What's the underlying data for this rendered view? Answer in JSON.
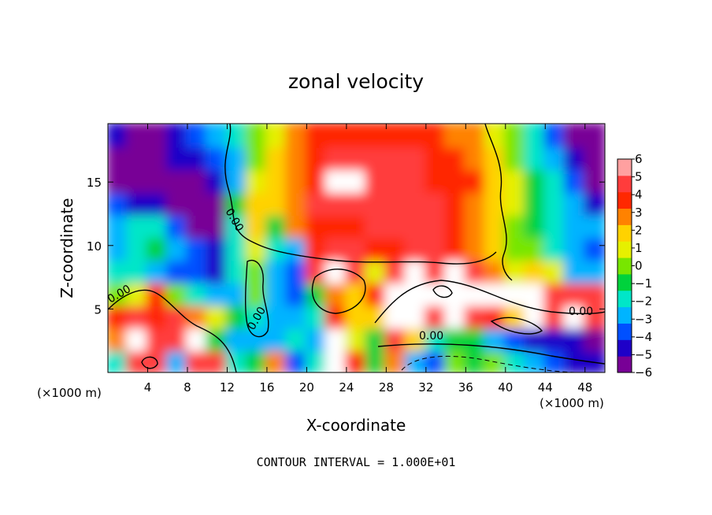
{
  "chart_data": {
    "type": "heatmap",
    "title": "zonal velocity",
    "xlabel": "X-coordinate",
    "ylabel": "Z-coordinate",
    "x_unit_label": "(×1000 m)",
    "x_ticks": [
      4,
      8,
      12,
      16,
      20,
      24,
      28,
      32,
      36,
      40,
      44,
      48
    ],
    "y_ticks": [
      5,
      10,
      15
    ],
    "xlim": [
      0,
      50
    ],
    "ylim": [
      0,
      19.6
    ],
    "colorbar_ticks": [
      6,
      5,
      4,
      3,
      2,
      1,
      0,
      -1,
      -2,
      -3,
      -4,
      -5,
      -6
    ],
    "colorbar_range": [
      -6,
      6
    ],
    "contour_label": "0.00",
    "contour_interval_text": "CONTOUR INTERVAL = 1.000E+01",
    "colormap": [
      "#780096",
      "#1e00c8",
      "#0050ff",
      "#00b4ff",
      "#00e6c8",
      "#00d23c",
      "#78e600",
      "#e6f000",
      "#ffd200",
      "#ff8200",
      "#ff2800",
      "#ff3c3c",
      "#ffa0a0"
    ],
    "field": [
      [
        -2,
        5,
        5,
        -3,
        5,
        5,
        -2,
        -1,
        3,
        -4,
        -2,
        6,
        4,
        -1,
        3,
        -3,
        -4,
        0,
        -1,
        0,
        -2,
        -3,
        -4,
        -5,
        -5
      ],
      [
        3,
        6,
        5,
        5,
        6,
        -1,
        -3,
        -3,
        -3,
        -2,
        -3,
        6,
        1,
        -1,
        5,
        2,
        -2,
        -1,
        -1,
        -3,
        -4,
        -5,
        -5,
        -5,
        -6
      ],
      [
        4,
        5,
        4,
        5,
        3,
        1,
        -1,
        -2,
        -3,
        -3,
        -2,
        4,
        2,
        2,
        6,
        6,
        5,
        6,
        5,
        4,
        2,
        6,
        5,
        6,
        5
      ],
      [
        0,
        1,
        4,
        0,
        -2,
        -3,
        -3,
        0,
        -3,
        -4,
        -1,
        3,
        2,
        4,
        6,
        6,
        6,
        6,
        6,
        6,
        6,
        6,
        5,
        5,
        5
      ],
      [
        -2,
        -2,
        -3,
        -4,
        -4,
        -5,
        -2,
        0,
        -3,
        -4,
        5,
        6,
        5,
        1,
        5,
        6,
        5,
        6,
        5,
        3,
        1,
        2,
        1,
        -3,
        -3
      ],
      [
        -3,
        -2,
        -1,
        -3,
        -4,
        -5,
        -2,
        1,
        -2,
        -3,
        4,
        5,
        5,
        4,
        4,
        5,
        5,
        4,
        3,
        2,
        0,
        0,
        -2,
        -3,
        -4
      ],
      [
        -3,
        -2,
        -2,
        -4,
        -6,
        -6,
        -2,
        2,
        -1,
        3,
        4,
        4,
        4,
        5,
        5,
        5,
        5,
        4,
        3,
        2,
        0,
        -1,
        -2,
        -3,
        -3
      ],
      [
        -4,
        -5,
        -5,
        -6,
        -6,
        -6,
        -1,
        2,
        2,
        3,
        5,
        5,
        5,
        5,
        5,
        5,
        5,
        4,
        3,
        2,
        1,
        -1,
        -2,
        -3,
        -5
      ],
      [
        -6,
        -6,
        -6,
        -6,
        -6,
        -5,
        -3,
        1,
        2,
        3,
        4,
        6,
        6,
        5,
        5,
        5,
        4,
        4,
        4,
        2,
        1,
        -1,
        -2,
        -4,
        -6
      ],
      [
        -6,
        -6,
        -6,
        -5,
        -5,
        -4,
        -3,
        0,
        2,
        3,
        4,
        5,
        5,
        5,
        5,
        5,
        4,
        4,
        3,
        2,
        0,
        -2,
        -3,
        -5,
        -6
      ],
      [
        -5,
        -6,
        -6,
        -5,
        -4,
        -3,
        -2,
        0,
        1,
        3,
        4,
        4,
        4,
        4,
        4,
        4,
        4,
        3,
        3,
        1,
        0,
        -2,
        -4,
        -6,
        -6
      ]
    ]
  }
}
